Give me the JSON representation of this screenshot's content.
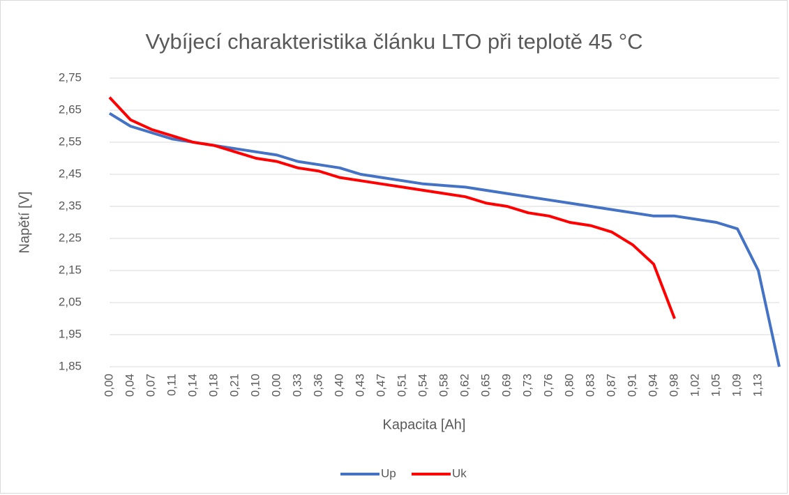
{
  "chart_data": {
    "type": "line",
    "title": "Vybíjecí charakteristika článku LTO při teplotě 45 °C",
    "xlabel": "Kapacita [Ah]",
    "ylabel": "Napětí [V]",
    "categories": [
      "0,00",
      "0,04",
      "0,07",
      "0,11",
      "0,14",
      "0,18",
      "0,21",
      "0,10",
      "0,00",
      "0,33",
      "0,36",
      "0,40",
      "0,43",
      "0,47",
      "0,51",
      "0,54",
      "0,58",
      "0,62",
      "0,65",
      "0,69",
      "0,73",
      "0,76",
      "0,80",
      "0,83",
      "0,87",
      "0,91",
      "0,94",
      "0,98",
      "1,02",
      "1,05",
      "1,09",
      "1,13",
      null
    ],
    "series": [
      {
        "name": "Up",
        "color": "#4472c4",
        "values": [
          2.64,
          2.6,
          2.58,
          2.56,
          2.55,
          2.54,
          2.53,
          2.52,
          2.51,
          2.49,
          2.48,
          2.47,
          2.45,
          2.44,
          2.43,
          2.42,
          2.415,
          2.41,
          2.4,
          2.39,
          2.38,
          2.37,
          2.36,
          2.35,
          2.34,
          2.33,
          2.32,
          2.32,
          2.31,
          2.3,
          2.28,
          2.15,
          1.85
        ]
      },
      {
        "name": "Uk",
        "color": "#ff0000",
        "values": [
          2.69,
          2.62,
          2.59,
          2.57,
          2.55,
          2.54,
          2.52,
          2.5,
          2.49,
          2.47,
          2.46,
          2.44,
          2.43,
          2.42,
          2.41,
          2.4,
          2.39,
          2.38,
          2.36,
          2.35,
          2.33,
          2.32,
          2.3,
          2.29,
          2.27,
          2.23,
          2.17,
          2.0,
          null,
          null,
          null,
          null,
          null
        ]
      }
    ],
    "ylim": [
      1.85,
      2.75
    ],
    "yticks": [
      {
        "value": 1.85,
        "label": "1,85"
      },
      {
        "value": 1.95,
        "label": "1,95"
      },
      {
        "value": 2.05,
        "label": "2,05"
      },
      {
        "value": 2.15,
        "label": "2,15"
      },
      {
        "value": 2.25,
        "label": "2,25"
      },
      {
        "value": 2.35,
        "label": "2,35"
      },
      {
        "value": 2.45,
        "label": "2,45"
      },
      {
        "value": 2.55,
        "label": "2,55"
      },
      {
        "value": 2.65,
        "label": "2,65"
      },
      {
        "value": 2.75,
        "label": "2,75"
      }
    ],
    "grid": true,
    "legend": "bottom"
  }
}
